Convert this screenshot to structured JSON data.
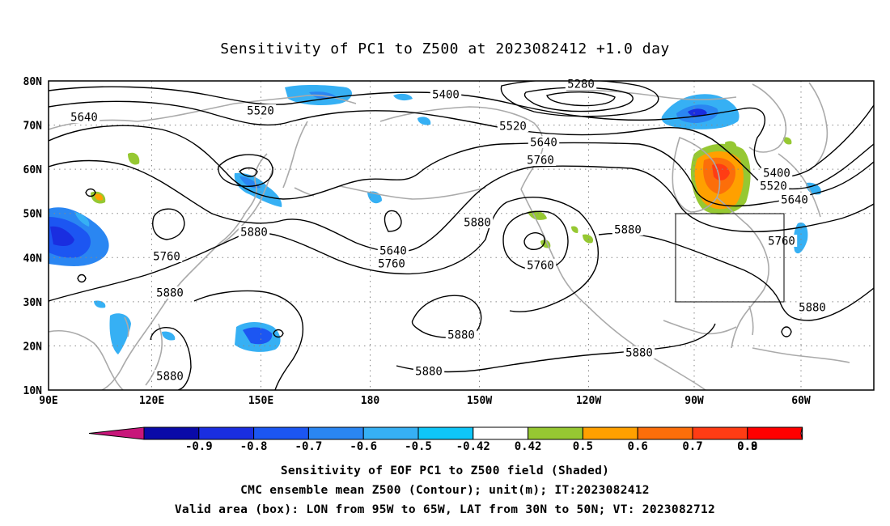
{
  "title": "Sensitivity of PC1 to Z500 at 2023082412 +1.0 day",
  "captions": [
    "Sensitivity of EOF PC1 to Z500 field (Shaded)",
    "CMC ensemble mean Z500 (Contour); unit(m); IT:2023082412",
    "Valid area (box): LON from 95W to 65W, LAT from 30N to 50N; VT: 2023082712"
  ],
  "lat_labels": [
    "80N",
    "70N",
    "60N",
    "50N",
    "40N",
    "30N",
    "20N",
    "10N"
  ],
  "lon_labels": [
    "90E",
    "120E",
    "150E",
    "180",
    "150W",
    "120W",
    "90W",
    "60W"
  ],
  "colorbar": {
    "labels": [
      "-0.9",
      "-0.8",
      "-0.7",
      "-0.6",
      "-0.5",
      "-0.42",
      "0.42",
      "0.5",
      "0.6",
      "0.7",
      "0.8",
      "0.9"
    ],
    "colors": [
      "#0a0aa8",
      "#1a2ee0",
      "#1c56f2",
      "#2a86f2",
      "#36b0f4",
      "#0fc6f8",
      "#ffffff",
      "#96c832",
      "#ffa000",
      "#fc6e0a",
      "#ff3c14",
      "#ff0000"
    ],
    "under_color": "#c8167a",
    "over_color": "#ffa0d2"
  },
  "contour_labels": [
    "5280",
    "5400",
    "5400",
    "5520",
    "5520",
    "5520",
    "5640",
    "5640",
    "5640",
    "5640",
    "5760",
    "5760",
    "5760",
    "5760",
    "5760",
    "5880",
    "5880",
    "5880",
    "5880",
    "5880",
    "5880",
    "5880",
    "5880",
    "5880"
  ],
  "valid_box": {
    "lon": [
      "95W",
      "65W"
    ],
    "lat": [
      "30N",
      "50N"
    ]
  }
}
